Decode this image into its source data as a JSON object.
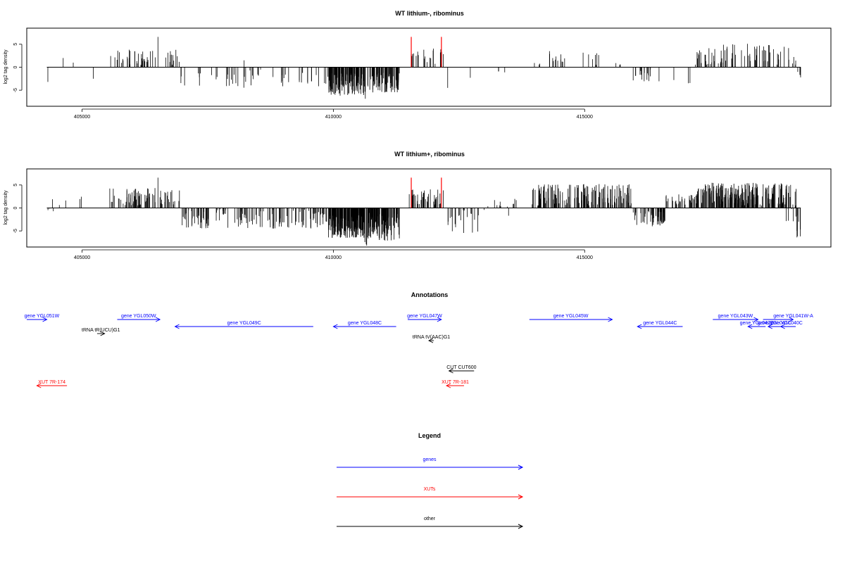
{
  "chart_data": [
    {
      "type": "bar",
      "title": "WT lithium-, ribominus",
      "ylabel": "log2 tag density",
      "xlim": [
        403900,
        419900
      ],
      "ylim": [
        -8.5,
        8.5
      ],
      "xticks": [
        405000,
        410000,
        415000
      ],
      "xtick_labels": [
        "405000",
        "410000",
        "415000"
      ],
      "yticks": [
        5,
        0,
        -5
      ],
      "ytick_labels": [
        "5",
        "0",
        "-5"
      ],
      "grid": false,
      "baseline_range": [
        404300,
        419300
      ],
      "highlights": {
        "color": "#ff0000",
        "x": [
          411550,
          412150
        ],
        "y": 6.6
      },
      "density_clusters": [
        {
          "from": 404310,
          "to": 404330,
          "count": 1,
          "min": -3.2,
          "max": -3.2
        },
        {
          "from": 404600,
          "to": 404650,
          "count": 1,
          "min": 2,
          "max": 2
        },
        {
          "from": 404800,
          "to": 404850,
          "count": 1,
          "min": 1,
          "max": 1
        },
        {
          "from": 405200,
          "to": 405250,
          "count": 1,
          "min": -2.5,
          "max": -2.5
        },
        {
          "from": 405550,
          "to": 406480,
          "count": 36,
          "min": 0.5,
          "max": 4
        },
        {
          "from": 406500,
          "to": 406520,
          "count": 1,
          "min": 6.6,
          "max": 6.6
        },
        {
          "from": 406550,
          "to": 406950,
          "count": 12,
          "min": 0.5,
          "max": 3.8
        },
        {
          "from": 406950,
          "to": 409900,
          "count": 52,
          "min": -4.5,
          "max": -0.4
        },
        {
          "from": 408200,
          "to": 408250,
          "count": 1,
          "min": 1.5,
          "max": 1.5
        },
        {
          "from": 409900,
          "to": 410620,
          "count": 120,
          "min": -6.2,
          "max": -1.2
        },
        {
          "from": 410620,
          "to": 410680,
          "count": 2,
          "min": -7,
          "max": -5
        },
        {
          "from": 410680,
          "to": 411320,
          "count": 80,
          "min": -5.5,
          "max": -1.2
        },
        {
          "from": 411500,
          "to": 412200,
          "count": 20,
          "min": 0.5,
          "max": 4.2
        },
        {
          "from": 412250,
          "to": 412300,
          "count": 1,
          "min": -4.5,
          "max": -4.5
        },
        {
          "from": 412700,
          "to": 412750,
          "count": 1,
          "min": -2.3,
          "max": -2.3
        },
        {
          "from": 413200,
          "to": 413450,
          "count": 3,
          "min": -1.2,
          "max": -0.5
        },
        {
          "from": 413950,
          "to": 414600,
          "count": 14,
          "min": 0.5,
          "max": 3.6
        },
        {
          "from": 414600,
          "to": 415300,
          "count": 8,
          "min": 0.5,
          "max": 3.5
        },
        {
          "from": 415600,
          "to": 415800,
          "count": 3,
          "min": 0.5,
          "max": 1
        },
        {
          "from": 415950,
          "to": 416550,
          "count": 16,
          "min": -3.6,
          "max": -0.3
        },
        {
          "from": 416750,
          "to": 416800,
          "count": 1,
          "min": -2.8,
          "max": -2.8
        },
        {
          "from": 417050,
          "to": 417100,
          "count": 2,
          "min": -3.6,
          "max": -1.5
        },
        {
          "from": 417200,
          "to": 419050,
          "count": 70,
          "min": 0.5,
          "max": 5.2
        },
        {
          "from": 419050,
          "to": 419220,
          "count": 6,
          "min": 0.5,
          "max": 4.6
        },
        {
          "from": 419220,
          "to": 419300,
          "count": 5,
          "min": -4,
          "max": -1
        }
      ]
    },
    {
      "type": "bar",
      "title": "WT lithium+, ribominus",
      "ylabel": "log2 tag density",
      "xlim": [
        403900,
        419900
      ],
      "ylim": [
        -8.5,
        8.5
      ],
      "xticks": [
        405000,
        410000,
        415000
      ],
      "xtick_labels": [
        "405000",
        "410000",
        "415000"
      ],
      "yticks": [
        5,
        0,
        -5
      ],
      "ytick_labels": [
        "5",
        "0",
        "-5"
      ],
      "grid": false,
      "baseline_range": [
        404300,
        419300
      ],
      "highlights": {
        "color": "#ff0000",
        "x": [
          411550,
          412150
        ],
        "y": 6.6
      },
      "density_clusters": [
        {
          "from": 404300,
          "to": 404700,
          "count": 8,
          "min": -3.2,
          "max": 2.2
        },
        {
          "from": 404900,
          "to": 405050,
          "count": 2,
          "min": 1,
          "max": 2.5
        },
        {
          "from": 405550,
          "to": 406480,
          "count": 55,
          "min": 0.5,
          "max": 4.5
        },
        {
          "from": 406500,
          "to": 406520,
          "count": 1,
          "min": 6.6,
          "max": 6.6
        },
        {
          "from": 406550,
          "to": 406950,
          "count": 20,
          "min": 0.5,
          "max": 4
        },
        {
          "from": 406950,
          "to": 409900,
          "count": 140,
          "min": -4.5,
          "max": -0.3
        },
        {
          "from": 409900,
          "to": 410620,
          "count": 180,
          "min": -6.5,
          "max": -1
        },
        {
          "from": 410620,
          "to": 410680,
          "count": 3,
          "min": -8.3,
          "max": -5.5
        },
        {
          "from": 410680,
          "to": 411320,
          "count": 120,
          "min": -7.2,
          "max": -1
        },
        {
          "from": 411500,
          "to": 412200,
          "count": 40,
          "min": 0.5,
          "max": 4.5
        },
        {
          "from": 412250,
          "to": 412900,
          "count": 20,
          "min": -5.5,
          "max": -0.5
        },
        {
          "from": 413000,
          "to": 413800,
          "count": 15,
          "min": -2.5,
          "max": 2
        },
        {
          "from": 413950,
          "to": 415950,
          "count": 150,
          "min": 0.5,
          "max": 5.2
        },
        {
          "from": 415950,
          "to": 416600,
          "count": 50,
          "min": -4,
          "max": -0.5
        },
        {
          "from": 416600,
          "to": 417200,
          "count": 30,
          "min": 0.5,
          "max": 3
        },
        {
          "from": 417200,
          "to": 419000,
          "count": 220,
          "min": 0.5,
          "max": 5.5
        },
        {
          "from": 419000,
          "to": 419220,
          "count": 20,
          "min": -4,
          "max": 5.6
        },
        {
          "from": 419220,
          "to": 419300,
          "count": 8,
          "min": -6.5,
          "max": -1
        }
      ]
    },
    {
      "type": "annotation-track",
      "title": "Annotations",
      "xlim": [
        403900,
        419900
      ],
      "features": [
        {
          "label": "gene YGL051W",
          "kind": "gene",
          "from": 403900,
          "to": 404300,
          "strand": "+",
          "row": 0,
          "label_x": 404200
        },
        {
          "label": "gene YGL050W",
          "kind": "gene",
          "from": 405700,
          "to": 406550,
          "strand": "+",
          "row": 0
        },
        {
          "label": "gene YGL049C",
          "kind": "gene",
          "from": 406850,
          "to": 409600,
          "strand": "-",
          "row": 1
        },
        {
          "label": "gene YGL048C",
          "kind": "gene",
          "from": 410000,
          "to": 411250,
          "strand": "-",
          "row": 1
        },
        {
          "label": "gene YGL047W",
          "kind": "gene",
          "from": 411480,
          "to": 412150,
          "strand": "+",
          "row": 0
        },
        {
          "label": "gene YGL045W",
          "kind": "gene",
          "from": 413900,
          "to": 415550,
          "strand": "+",
          "row": 0
        },
        {
          "label": "gene YGL044C",
          "kind": "gene",
          "from": 416050,
          "to": 416950,
          "strand": "-",
          "row": 1
        },
        {
          "label": "gene YGL043W",
          "kind": "gene",
          "from": 417550,
          "to": 418450,
          "strand": "+",
          "row": 0
        },
        {
          "label": "gene YGL041W-A",
          "kind": "gene",
          "from": 418550,
          "to": 419150,
          "strand": "+",
          "row": 0,
          "label_x": 419150
        },
        {
          "label": "gene YGL042C",
          "kind": "gene",
          "from": 418250,
          "to": 418600,
          "strand": "-",
          "row": 1
        },
        {
          "label": "gene YGL041C",
          "kind": "gene",
          "from": 418650,
          "to": 418900,
          "strand": "-",
          "row": 1
        },
        {
          "label": "gene YGL040C",
          "kind": "gene",
          "from": 418900,
          "to": 419200,
          "strand": "-",
          "row": 1,
          "label_x": 419000
        },
        {
          "label": "tRNA tR(UCU)G1",
          "kind": "other",
          "from": 405300,
          "to": 405450,
          "strand": "+",
          "row": 2
        },
        {
          "label": "tRNA tV(AAC)G1",
          "kind": "other",
          "from": 411900,
          "to": 412000,
          "strand": "-",
          "row": 3
        },
        {
          "label": "CUT CUT600",
          "kind": "other",
          "from": 412300,
          "to": 412800,
          "strand": "-",
          "row": 5
        },
        {
          "label": "XUT 7R-174",
          "kind": "XUT",
          "from": 404100,
          "to": 404700,
          "strand": "-",
          "row": 6
        },
        {
          "label": "XUT 7R-181",
          "kind": "XUT",
          "from": 412250,
          "to": 412600,
          "strand": "-",
          "row": 6
        }
      ]
    },
    {
      "type": "legend",
      "title": "Legend",
      "entries": [
        {
          "label": "genes",
          "color": "#0000ff"
        },
        {
          "label": "XUTs",
          "color": "#ff0000"
        },
        {
          "label": "other",
          "color": "#000000"
        }
      ]
    }
  ]
}
